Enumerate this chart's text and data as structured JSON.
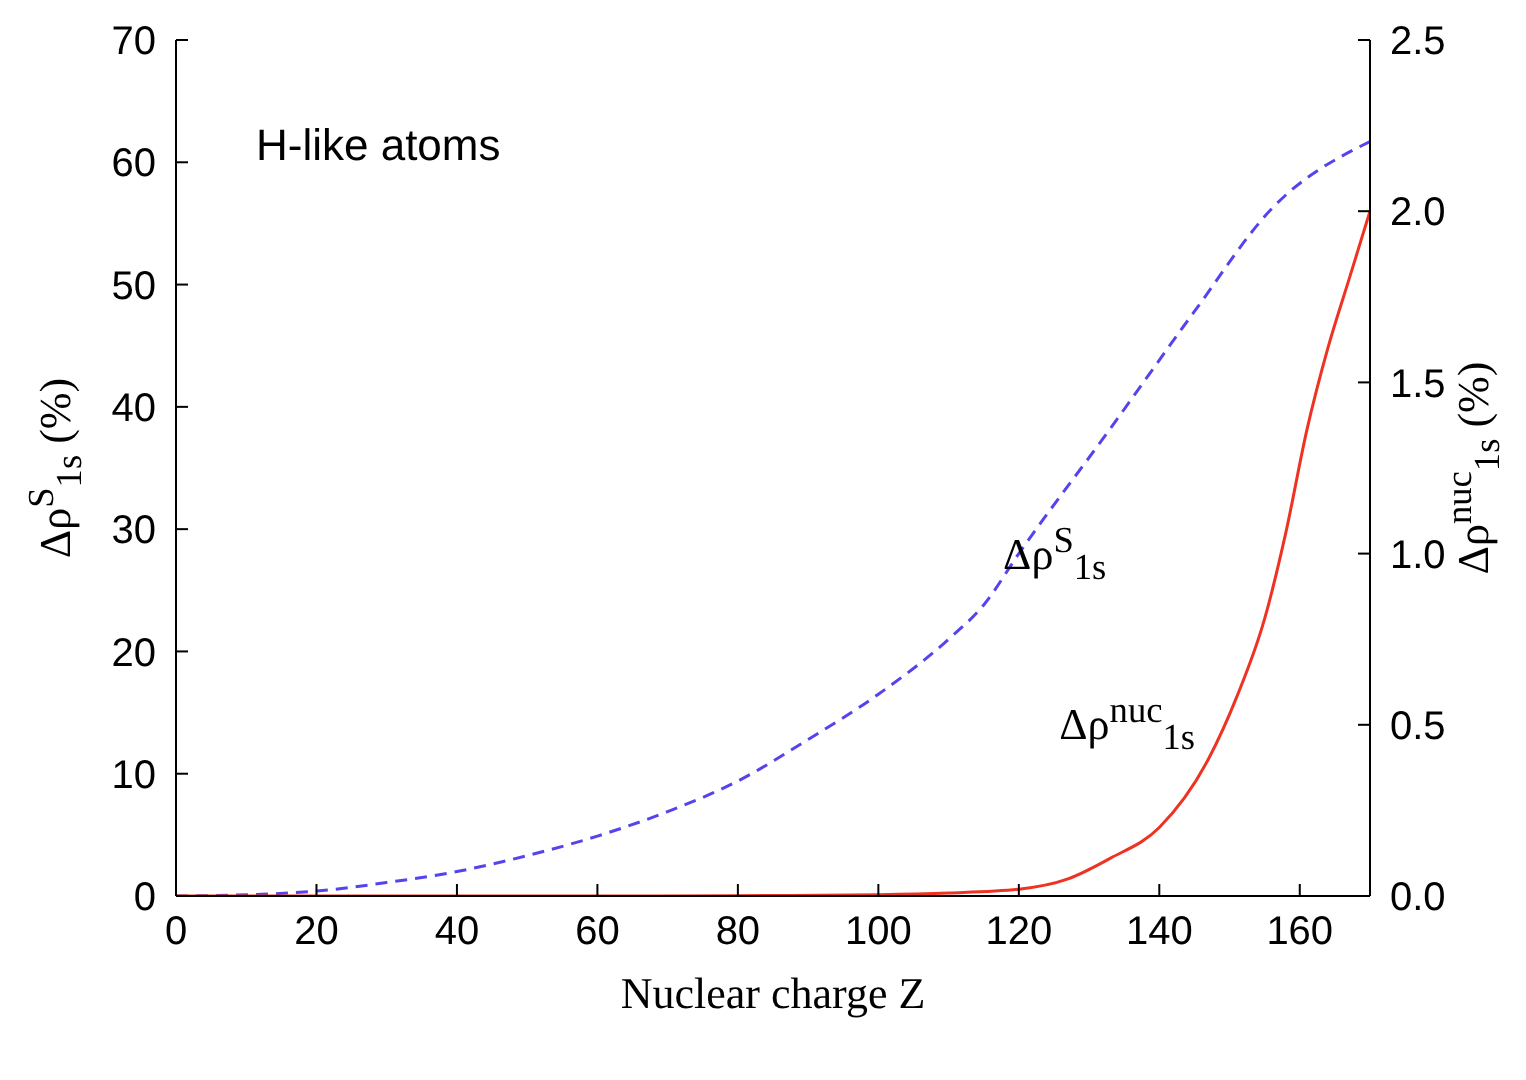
{
  "chart_data": {
    "type": "line",
    "xlabel": "Nuclear charge Z",
    "ylabel": "Δρ$^{S}$$_{1s}$ (%)",
    "y2label": "Δρ$^{nuc}$$_{1s}$ (%)",
    "annotations": [
      "H-like atoms"
    ],
    "xlim": [
      0,
      170
    ],
    "xticks": [
      0,
      20,
      40,
      60,
      80,
      100,
      120,
      140,
      160
    ],
    "ylim": [
      0,
      70
    ],
    "yticks": [
      0,
      10,
      20,
      30,
      40,
      50,
      60,
      70
    ],
    "y2lim": [
      0,
      2.5
    ],
    "y2ticks": [
      {
        "value": 0,
        "label": "0.0"
      },
      {
        "value": 0.5,
        "label": "0.5"
      },
      {
        "value": 1,
        "label": "1.0"
      },
      {
        "value": 1.5,
        "label": "1.5"
      },
      {
        "value": 2,
        "label": "2.0"
      },
      {
        "value": 2.5,
        "label": "2.5"
      }
    ],
    "grid": false,
    "legend": false,
    "marker": "none",
    "series": [
      {
        "name": "Δρ$^{S}$$_{1s}$",
        "color": "#5544ee",
        "line_style": "dashed",
        "x": [
          0,
          10,
          20,
          30,
          40,
          50,
          60,
          70,
          80,
          90,
          100,
          110,
          115,
          120,
          133,
          145,
          156,
          170
        ],
        "values": [
          0,
          0.1,
          0.4,
          1.1,
          2.0,
          3.3,
          4.9,
          6.9,
          9.4,
          12.8,
          16.5,
          21.0,
          23.8,
          28.0,
          38.2,
          47.8,
          56.2,
          61.7
        ]
      },
      {
        "name": "Δρ$^{nuc}$$_{1s}$",
        "color": "#ee3322",
        "axis": "y2",
        "line_style": "solid",
        "x": [
          0,
          60,
          80,
          100,
          110,
          120,
          127,
          133,
          140,
          147,
          151,
          155,
          158,
          161,
          164,
          167,
          170
        ],
        "values": [
          0,
          0,
          0.001,
          0.004,
          0.009,
          0.02,
          0.05,
          0.11,
          0.2,
          0.4,
          0.58,
          0.81,
          1.06,
          1.36,
          1.6,
          1.8,
          2.0
        ]
      }
    ]
  }
}
